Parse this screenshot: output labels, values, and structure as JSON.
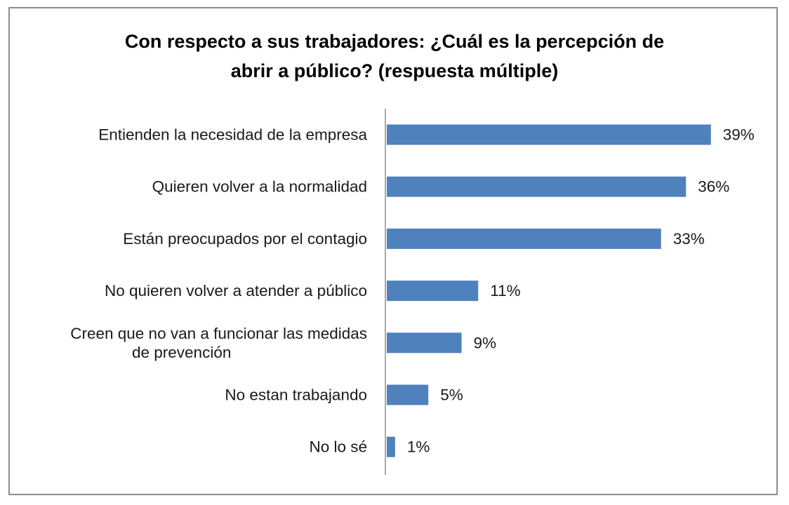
{
  "chart_data": {
    "type": "bar",
    "orientation": "horizontal",
    "title": [
      "Con respecto a sus trabajadores: ¿Cuál es la percepción de",
      "abrir a público? (respuesta múltiple)"
    ],
    "categories": [
      [
        "Entienden la necesidad de la empresa"
      ],
      [
        "Quieren volver a la normalidad"
      ],
      [
        "Están preocupados por el contagio"
      ],
      [
        "No quieren volver a atender a público"
      ],
      [
        "Creen que no van a funcionar las medidas",
        "de prevención"
      ],
      [
        "No estan trabajando"
      ],
      [
        "No lo sé"
      ]
    ],
    "values": [
      39,
      36,
      33,
      11,
      9,
      5,
      1
    ],
    "value_labels": [
      "39%",
      "36%",
      "33%",
      "11%",
      "9%",
      "5%",
      "1%"
    ],
    "unit": "%",
    "xlim": [
      0,
      45
    ],
    "grid": false,
    "legend": "none",
    "bar_color": "#4f81bd",
    "axis_color": "#8c8c8c"
  }
}
